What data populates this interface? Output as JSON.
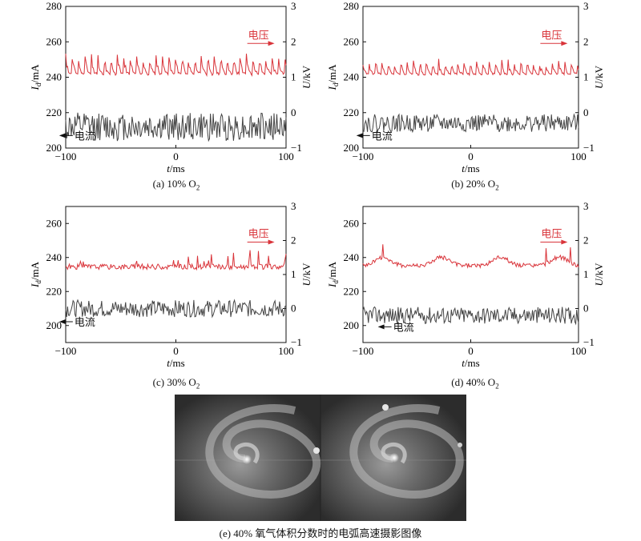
{
  "chart_data": [
    {
      "type": "line",
      "caption": "(a) 10% O",
      "caption_sub": "2",
      "xlabel_italic": "t",
      "xlabel_unit": "/ms",
      "ylabel_italic": "I",
      "ylabel_sub": "d",
      "ylabel_unit": "/mA",
      "y2label_italic": "U",
      "y2label_unit": "/kV",
      "xlim": [
        -100,
        100
      ],
      "ylim": [
        200,
        280
      ],
      "y2lim": [
        -1,
        3
      ],
      "xticks": [
        -100,
        0,
        100
      ],
      "yticks": [
        200,
        220,
        240,
        260,
        280
      ],
      "y2ticks": [
        -1,
        0,
        1,
        2,
        3
      ],
      "series": [
        {
          "name": "电压",
          "axis": "right",
          "color": "#d9343a",
          "baseline": 1.05,
          "amplitude": 0.55,
          "style": "spiky",
          "seed": 11,
          "annotation": {
            "text": "电压",
            "arrow": "right",
            "x": 75,
            "y": 2.0
          }
        },
        {
          "name": "电流",
          "axis": "left",
          "color": "#444444",
          "baseline": 212,
          "amplitude": 8,
          "style": "noisy",
          "seed": 12,
          "annotation": {
            "text": "电流",
            "arrow": "left",
            "x": -95,
            "y": 203
          }
        }
      ]
    },
    {
      "type": "line",
      "caption": "(b) 20% O",
      "caption_sub": "2",
      "xlabel_italic": "t",
      "xlabel_unit": "/ms",
      "ylabel_italic": "I",
      "ylabel_sub": "d",
      "ylabel_unit": "/mA",
      "y2label_italic": "U",
      "y2label_unit": "/kV",
      "xlim": [
        -100,
        100
      ],
      "ylim": [
        200,
        280
      ],
      "y2lim": [
        -1,
        3
      ],
      "xticks": [
        -100,
        0,
        100
      ],
      "yticks": [
        200,
        220,
        240,
        260,
        280
      ],
      "y2ticks": [
        -1,
        0,
        1,
        2,
        3
      ],
      "series": [
        {
          "name": "电压",
          "axis": "right",
          "color": "#d9343a",
          "baseline": 1.05,
          "amplitude": 0.4,
          "style": "spiky",
          "seed": 21,
          "annotation": {
            "text": "电压",
            "arrow": "right",
            "x": 75,
            "y": 2.0
          }
        },
        {
          "name": "电流",
          "axis": "left",
          "color": "#444444",
          "baseline": 214,
          "amplitude": 5,
          "style": "noisy",
          "seed": 22,
          "annotation": {
            "text": "电流",
            "arrow": "left",
            "x": -95,
            "y": 203
          }
        }
      ]
    },
    {
      "type": "line",
      "caption": "(c) 30% O",
      "caption_sub": "2",
      "xlabel_italic": "t",
      "xlabel_unit": "/ms",
      "ylabel_italic": "I",
      "ylabel_sub": "d",
      "ylabel_unit": "/mA",
      "y2label_italic": "U",
      "y2label_unit": "/kV",
      "xlim": [
        -100,
        100
      ],
      "ylim": [
        190,
        270
      ],
      "y2lim": [
        -1,
        3
      ],
      "xticks": [
        -100,
        0,
        100
      ],
      "yticks": [
        200,
        220,
        240,
        260
      ],
      "y2ticks": [
        -1,
        0,
        1,
        2,
        3
      ],
      "series": [
        {
          "name": "电压",
          "axis": "right",
          "color": "#d9343a",
          "baseline": 1.15,
          "amplitude": 0.45,
          "style": "bursty",
          "seed": 31,
          "annotation": {
            "text": "电压",
            "arrow": "right",
            "x": 75,
            "y": 2.0
          }
        },
        {
          "name": "电流",
          "axis": "left",
          "color": "#444444",
          "baseline": 210,
          "amplitude": 5,
          "style": "noisy",
          "seed": 32,
          "annotation": {
            "text": "电流",
            "arrow": "left",
            "x": -95,
            "y": 198
          }
        }
      ]
    },
    {
      "type": "line",
      "caption": "(d) 40% O",
      "caption_sub": "2",
      "xlabel_italic": "t",
      "xlabel_unit": "/ms",
      "ylabel_italic": "I",
      "ylabel_sub": "d",
      "ylabel_unit": "/mA",
      "y2label_italic": "U",
      "y2label_unit": "/kV",
      "xlim": [
        -100,
        100
      ],
      "ylim": [
        190,
        270
      ],
      "y2lim": [
        -1,
        3
      ],
      "xticks": [
        -100,
        0,
        100
      ],
      "yticks": [
        200,
        220,
        240,
        260
      ],
      "y2ticks": [
        -1,
        0,
        1,
        2,
        3
      ],
      "series": [
        {
          "name": "电压",
          "axis": "right",
          "color": "#d9343a",
          "baseline": 1.2,
          "amplitude": 0.5,
          "style": "humps",
          "seed": 41,
          "annotation": {
            "text": "电压",
            "arrow": "right",
            "x": 75,
            "y": 2.0
          }
        },
        {
          "name": "电流",
          "axis": "left",
          "color": "#444444",
          "baseline": 206,
          "amplitude": 5,
          "style": "noisy",
          "seed": 42,
          "annotation": {
            "text": "电流",
            "arrow": "left",
            "x": -75,
            "y": 195
          }
        }
      ]
    }
  ],
  "photo_caption": "(e) 40% 氧气体积分数时的电弧高速摄影图像"
}
